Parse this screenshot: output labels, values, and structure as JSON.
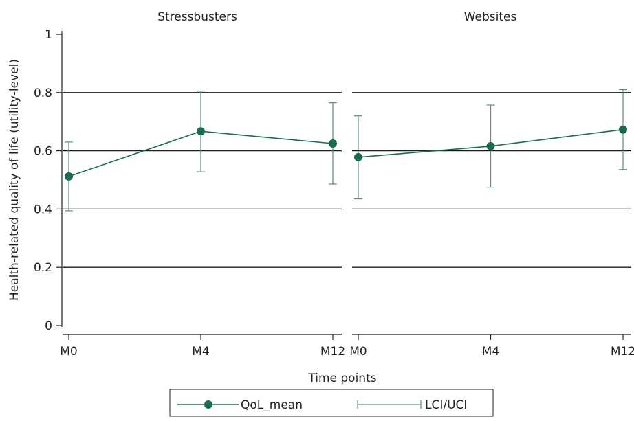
{
  "chart_data": {
    "type": "line",
    "xlabel": "Time points",
    "ylabel": "Health-related quality of life (utility-level)",
    "ylim": [
      0,
      1
    ],
    "yticks": [
      0,
      0.2,
      0.4,
      0.6,
      0.8,
      1
    ],
    "ytick_labels": [
      "0",
      "0.2",
      "0.4",
      "0.6",
      "0.8",
      "1"
    ],
    "categories": [
      "M0",
      "M4",
      "M12"
    ],
    "grid": true,
    "legend_position": "bottom",
    "legend": [
      {
        "label": "QoL_mean",
        "kind": "line-marker"
      },
      {
        "label": "LCI/UCI",
        "kind": "errorbar"
      }
    ],
    "color": "#1b6b4e",
    "ci_color": "#5f8f7e",
    "panels": [
      {
        "title": "Stressbusters",
        "mean": [
          0.512,
          0.667,
          0.625
        ],
        "lci": [
          0.394,
          0.528,
          0.486
        ],
        "uci": [
          0.63,
          0.805,
          0.765
        ]
      },
      {
        "title": "Websites",
        "mean": [
          0.578,
          0.616,
          0.673
        ],
        "lci": [
          0.435,
          0.475,
          0.536
        ],
        "uci": [
          0.72,
          0.757,
          0.81
        ]
      }
    ]
  }
}
